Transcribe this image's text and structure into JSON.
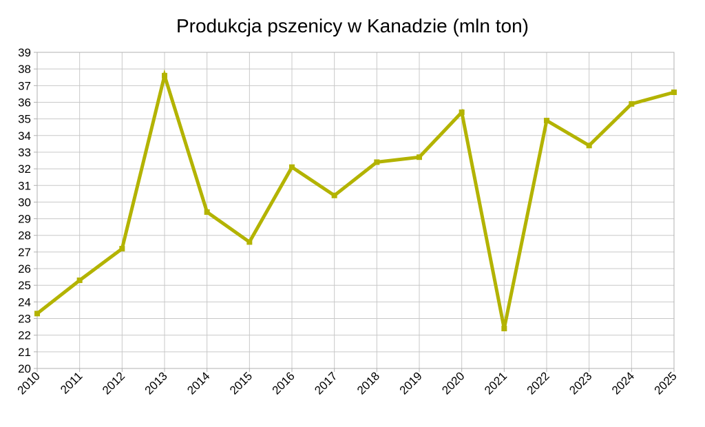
{
  "chart_data": {
    "type": "line",
    "title": "Produkcja pszenicy w Kanadzie (mln ton)",
    "xlabel": "",
    "ylabel": "",
    "x": [
      "2010",
      "2011",
      "2012",
      "2013",
      "2014",
      "2015",
      "2016",
      "2017",
      "2018",
      "2019",
      "2020",
      "2021",
      "2022",
      "2023",
      "2024",
      "2025"
    ],
    "series": [
      {
        "values": [
          23.3,
          25.3,
          27.2,
          37.6,
          29.4,
          27.6,
          32.1,
          30.4,
          32.4,
          32.7,
          35.4,
          22.4,
          34.9,
          33.4,
          35.9,
          36.6
        ]
      }
    ],
    "ylim": [
      20,
      39
    ],
    "yticks": [
      20,
      21,
      22,
      23,
      24,
      25,
      26,
      27,
      28,
      29,
      30,
      31,
      32,
      33,
      34,
      35,
      36,
      37,
      38,
      39
    ],
    "grid": true,
    "legend": "none",
    "line_color": "#b3b300"
  }
}
